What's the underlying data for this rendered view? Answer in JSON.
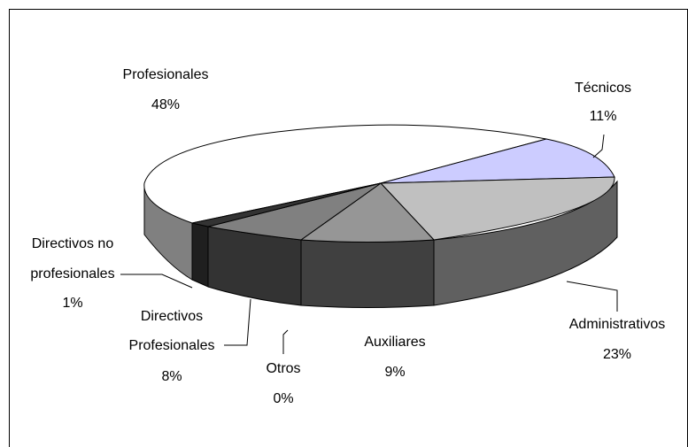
{
  "chart_data": {
    "type": "pie",
    "style": "3d-exploded-pie",
    "title": "",
    "legend": "none",
    "slices": [
      {
        "label": "Profesionales",
        "value": 48,
        "value_label": "48%",
        "top_color": "#ffffff",
        "side_color": "#808080"
      },
      {
        "label": "Técnicos",
        "value": 11,
        "value_label": "11%",
        "top_color": "#ccccff",
        "side_color": "#666699"
      },
      {
        "label": "Administrativos",
        "value": 23,
        "value_label": "23%",
        "top_color": "#c0c0c0",
        "side_color": "#606060"
      },
      {
        "label": "Auxiliares",
        "value": 9,
        "value_label": "9%",
        "top_color": "#969696",
        "side_color": "#404040"
      },
      {
        "label": "Otros",
        "value": 0,
        "value_label": "0%",
        "top_color": "#595959",
        "side_color": "#2a2a2a"
      },
      {
        "label": "Directivos Profesionales",
        "value": 8,
        "value_label": "8%",
        "top_color": "#808080",
        "side_color": "#333333"
      },
      {
        "label": "Directivos no profesionales",
        "value": 1,
        "value_label": "1%",
        "top_color": "#333333",
        "side_color": "#111111"
      }
    ],
    "text_labels": {
      "profesionales": [
        "Profesionales",
        "48%"
      ],
      "tecnicos": [
        "Técnicos",
        "11%"
      ],
      "administrativos": [
        "Administrativos",
        "23%"
      ],
      "auxiliares": [
        "Auxiliares",
        "9%"
      ],
      "otros": [
        "Otros",
        "0%"
      ],
      "directivos_prof": [
        "Directivos",
        "Profesionales",
        "8%"
      ],
      "directivos_noprof": [
        "Directivos no",
        "profesionales",
        "1%"
      ]
    }
  }
}
